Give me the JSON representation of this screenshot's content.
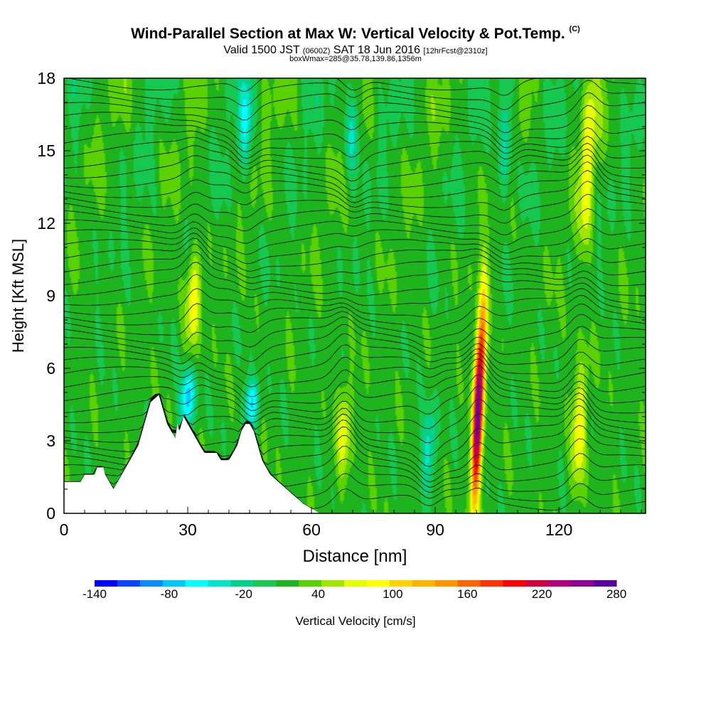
{
  "title_main": "Wind-Parallel Section at Max W: Vertical Velocity & Pot.Temp.",
  "title_mark": "(C)",
  "subtitle_valid": "Valid 1500 JST",
  "subtitle_z": "(0600Z)",
  "subtitle_date": "SAT 18 Jun 2016",
  "subtitle_fcst": "[12hrFcst@2310z]",
  "subtitle_box": "boxWmax=285@35.78,139.86,1356m",
  "chart_data": {
    "type": "heatmap",
    "xlabel": "Distance [nm]",
    "ylabel": "Height [Kft MSL]",
    "xlim": [
      0,
      141
    ],
    "ylim": [
      0,
      18
    ],
    "x_ticks": [
      0,
      30,
      60,
      90,
      120
    ],
    "y_ticks": [
      0,
      3,
      6,
      9,
      12,
      15,
      18
    ],
    "background_value": 10,
    "colorbar": {
      "title": "Vertical Velocity [cm/s]",
      "labels": [
        -140,
        -80,
        -20,
        40,
        100,
        160,
        220,
        280
      ],
      "levels": [
        -140,
        -120,
        -100,
        -80,
        -60,
        -40,
        -20,
        0,
        20,
        40,
        60,
        80,
        100,
        120,
        140,
        160,
        180,
        200,
        220,
        240,
        260,
        280
      ],
      "colors": [
        "#0000ff",
        "#0a46ff",
        "#0a8cff",
        "#00c8ff",
        "#00ffff",
        "#00e6c8",
        "#00d28c",
        "#14c850",
        "#1eb41e",
        "#5ad200",
        "#a0e600",
        "#e6ff00",
        "#ffff00",
        "#ffd200",
        "#ffb400",
        "#ff9600",
        "#ff6400",
        "#ff3200",
        "#ff0000",
        "#d2003c",
        "#b40078",
        "#8c0096",
        "#5a00a0"
      ]
    },
    "features": [
      {
        "type": "updraft",
        "x": 100.5,
        "y_bottom": 0.3,
        "y_top": 8.7,
        "peak": 285
      },
      {
        "type": "updraft",
        "x": 31.5,
        "y_bottom": 7.0,
        "y_top": 11.0,
        "peak": 80
      },
      {
        "type": "updraft",
        "x": 125.0,
        "y_bottom": 1.0,
        "y_top": 6.5,
        "peak": 70
      },
      {
        "type": "updraft",
        "x": 127.0,
        "y_bottom": 11.0,
        "y_top": 18.0,
        "peak": 70
      },
      {
        "type": "updraft",
        "x": 68.0,
        "y_bottom": 1.5,
        "y_top": 5.5,
        "peak": 60
      },
      {
        "type": "downdraft",
        "x": 30.0,
        "y_bottom": 3.5,
        "y_top": 6.0,
        "peak": -100
      },
      {
        "type": "downdraft",
        "x": 45.5,
        "y_bottom": 3.5,
        "y_top": 5.5,
        "peak": -90
      },
      {
        "type": "downdraft",
        "x": 88.5,
        "y_bottom": 1.0,
        "y_top": 4.5,
        "peak": -60
      },
      {
        "type": "downdraft",
        "x": 44.0,
        "y_bottom": 14.0,
        "y_top": 18.0,
        "peak": -60
      },
      {
        "type": "downdraft",
        "x": 70.0,
        "y_bottom": 14.0,
        "y_top": 18.0,
        "peak": -60
      },
      {
        "type": "downdraft",
        "x": 107.0,
        "y_bottom": 13.0,
        "y_top": 18.0,
        "peak": -60
      }
    ],
    "terrain": [
      [
        0,
        1.3
      ],
      [
        4,
        1.3
      ],
      [
        5,
        1.6
      ],
      [
        7.5,
        1.6
      ],
      [
        8,
        1.9
      ],
      [
        9.5,
        1.9
      ],
      [
        10,
        1.6
      ],
      [
        11,
        1.3
      ],
      [
        12,
        1.0
      ],
      [
        13,
        1.3
      ],
      [
        14,
        1.6
      ],
      [
        15,
        1.9
      ],
      [
        16,
        2.2
      ],
      [
        17,
        2.5
      ],
      [
        18,
        2.8
      ],
      [
        19,
        3.4
      ],
      [
        20,
        4.0
      ],
      [
        21,
        4.6
      ],
      [
        23,
        4.9
      ],
      [
        24,
        4.3
      ],
      [
        25,
        3.7
      ],
      [
        26,
        3.4
      ],
      [
        27,
        3.1
      ],
      [
        27.5,
        3.7
      ],
      [
        28,
        3.4
      ],
      [
        29,
        4.0
      ],
      [
        30,
        3.7
      ],
      [
        31,
        3.4
      ],
      [
        32,
        3.1
      ],
      [
        33,
        2.8
      ],
      [
        34,
        2.5
      ],
      [
        37,
        2.5
      ],
      [
        38,
        2.2
      ],
      [
        40,
        2.2
      ],
      [
        41,
        2.5
      ],
      [
        42,
        2.8
      ],
      [
        43,
        3.4
      ],
      [
        44,
        3.7
      ],
      [
        45,
        3.7
      ],
      [
        46,
        3.4
      ],
      [
        47,
        2.8
      ],
      [
        48,
        2.2
      ],
      [
        49,
        1.9
      ],
      [
        50,
        1.6
      ],
      [
        52,
        1.3
      ],
      [
        54,
        1.0
      ],
      [
        56,
        0.7
      ],
      [
        58,
        0.4
      ],
      [
        60,
        0.2
      ],
      [
        62,
        0
      ]
    ]
  }
}
